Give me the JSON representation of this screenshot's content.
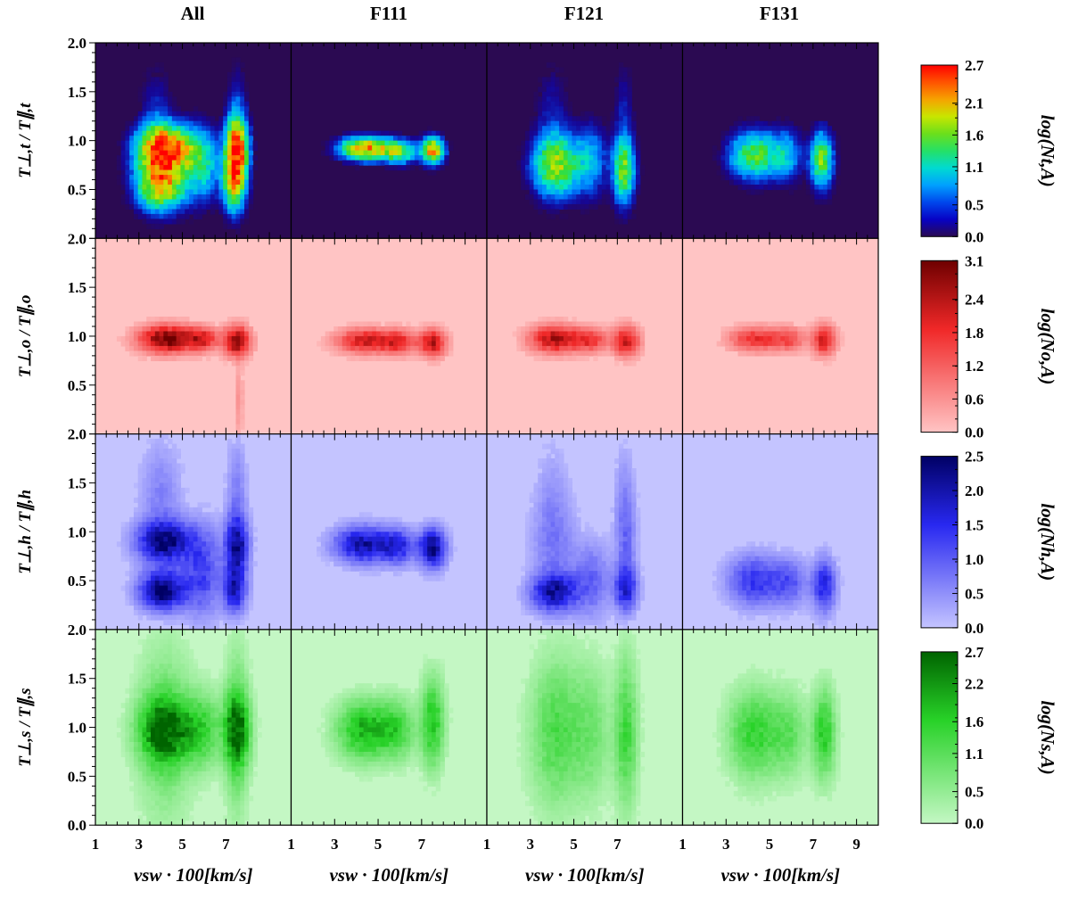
{
  "figure": {
    "column_titles": [
      "All",
      "F111",
      "F121",
      "F131"
    ]
  },
  "chart_data": [
    {
      "type": "heatmap",
      "row": "t",
      "ylabel": "T⊥,t / T∥,t",
      "xlabel": "vsw · 100[km/s]",
      "x_range": [
        1,
        10
      ],
      "x_ticks": [
        "1",
        "3",
        "5",
        "7",
        "9"
      ],
      "y_range": [
        0.0,
        2.0
      ],
      "y_ticks": [
        "0.5",
        "1.0",
        "1.5",
        "2.0"
      ],
      "background": "#2b0a52",
      "colorbar": {
        "label": "log(Nt,A)",
        "ticks": [
          "0.0",
          "0.5",
          "1.1",
          "1.6",
          "2.1",
          "2.7"
        ],
        "range": [
          0.0,
          2.7
        ],
        "palette": "jet"
      },
      "columns": [
        {
          "name": "All",
          "blobs": [
            {
              "x": 4.2,
              "y": 0.92,
              "sx": 0.85,
              "sy": 0.16,
              "w": 1.0
            },
            {
              "x": 4.0,
              "y": 0.55,
              "sx": 0.75,
              "sy": 0.18,
              "w": 0.75
            },
            {
              "x": 7.5,
              "y": 0.92,
              "sx": 0.35,
              "sy": 0.22,
              "w": 0.9
            },
            {
              "x": 7.4,
              "y": 0.55,
              "sx": 0.35,
              "sy": 0.2,
              "w": 0.6
            },
            {
              "x": 5.9,
              "y": 0.75,
              "sx": 0.6,
              "sy": 0.25,
              "w": 0.35
            },
            {
              "x": 3.8,
              "y": 1.3,
              "sx": 0.5,
              "sy": 0.3,
              "w": 0.12
            },
            {
              "x": 7.5,
              "y": 1.35,
              "sx": 0.3,
              "sy": 0.3,
              "w": 0.12
            }
          ]
        },
        {
          "name": "F111",
          "blobs": [
            {
              "x": 4.5,
              "y": 0.92,
              "sx": 0.85,
              "sy": 0.08,
              "w": 0.8
            },
            {
              "x": 7.5,
              "y": 0.9,
              "sx": 0.35,
              "sy": 0.09,
              "w": 0.8
            },
            {
              "x": 6.0,
              "y": 0.88,
              "sx": 0.5,
              "sy": 0.08,
              "w": 0.45
            }
          ]
        },
        {
          "name": "F121",
          "blobs": [
            {
              "x": 4.2,
              "y": 0.75,
              "sx": 0.75,
              "sy": 0.22,
              "w": 0.6
            },
            {
              "x": 7.3,
              "y": 0.7,
              "sx": 0.35,
              "sy": 0.24,
              "w": 0.55
            },
            {
              "x": 5.8,
              "y": 0.8,
              "sx": 0.5,
              "sy": 0.25,
              "w": 0.25
            },
            {
              "x": 4.0,
              "y": 1.35,
              "sx": 0.5,
              "sy": 0.3,
              "w": 0.1
            },
            {
              "x": 7.3,
              "y": 1.35,
              "sx": 0.3,
              "sy": 0.3,
              "w": 0.1
            }
          ]
        },
        {
          "name": "F131",
          "blobs": [
            {
              "x": 4.3,
              "y": 0.85,
              "sx": 0.8,
              "sy": 0.17,
              "w": 0.5
            },
            {
              "x": 7.4,
              "y": 0.8,
              "sx": 0.35,
              "sy": 0.2,
              "w": 0.55
            },
            {
              "x": 5.8,
              "y": 0.85,
              "sx": 0.5,
              "sy": 0.18,
              "w": 0.25
            }
          ]
        }
      ]
    },
    {
      "type": "heatmap",
      "row": "o",
      "ylabel": "T⊥,o / T∥,o",
      "xlabel": "vsw · 100[km/s]",
      "x_range": [
        1,
        10
      ],
      "x_ticks": [
        "1",
        "3",
        "5",
        "7",
        "9"
      ],
      "y_range": [
        0.0,
        2.0
      ],
      "y_ticks": [
        "0.5",
        "1.0",
        "1.5",
        "2.0"
      ],
      "background": "#ffc4c4",
      "colorbar": {
        "label": "log(No,A)",
        "ticks": [
          "0.0",
          "0.6",
          "1.2",
          "1.8",
          "2.4",
          "3.1"
        ],
        "range": [
          0.0,
          3.1
        ],
        "palette": "red"
      },
      "columns": [
        {
          "name": "All",
          "blobs": [
            {
              "x": 4.3,
              "y": 0.97,
              "sx": 0.85,
              "sy": 0.09,
              "w": 1.0
            },
            {
              "x": 7.5,
              "y": 0.95,
              "sx": 0.4,
              "sy": 0.1,
              "w": 0.9
            },
            {
              "x": 5.9,
              "y": 0.97,
              "sx": 0.5,
              "sy": 0.08,
              "w": 0.55
            },
            {
              "x": 7.6,
              "y": 0.35,
              "sx": 0.12,
              "sy": 0.25,
              "w": 0.15
            }
          ]
        },
        {
          "name": "F111",
          "blobs": [
            {
              "x": 4.5,
              "y": 0.95,
              "sx": 0.9,
              "sy": 0.08,
              "w": 0.7
            },
            {
              "x": 7.5,
              "y": 0.93,
              "sx": 0.4,
              "sy": 0.09,
              "w": 0.75
            },
            {
              "x": 6.0,
              "y": 0.94,
              "sx": 0.5,
              "sy": 0.08,
              "w": 0.5
            }
          ]
        },
        {
          "name": "F121",
          "blobs": [
            {
              "x": 4.2,
              "y": 0.97,
              "sx": 0.8,
              "sy": 0.09,
              "w": 0.8
            },
            {
              "x": 7.4,
              "y": 0.95,
              "sx": 0.4,
              "sy": 0.1,
              "w": 0.7
            },
            {
              "x": 5.8,
              "y": 0.96,
              "sx": 0.5,
              "sy": 0.08,
              "w": 0.45
            }
          ]
        },
        {
          "name": "F131",
          "blobs": [
            {
              "x": 4.4,
              "y": 0.97,
              "sx": 0.8,
              "sy": 0.08,
              "w": 0.55
            },
            {
              "x": 7.5,
              "y": 0.96,
              "sx": 0.35,
              "sy": 0.1,
              "w": 0.65
            },
            {
              "x": 5.9,
              "y": 0.97,
              "sx": 0.5,
              "sy": 0.08,
              "w": 0.35
            }
          ]
        }
      ]
    },
    {
      "type": "heatmap",
      "row": "h",
      "ylabel": "T⊥,h / T∥,h",
      "xlabel": "vsw · 100[km/s]",
      "x_range": [
        1,
        10
      ],
      "x_ticks": [
        "1",
        "3",
        "5",
        "7",
        "9"
      ],
      "y_range": [
        0.0,
        2.0
      ],
      "y_ticks": [
        "0.5",
        "1.0",
        "1.5",
        "2.0"
      ],
      "background": "#c4c4ff",
      "colorbar": {
        "label": "log(Nh,A)",
        "ticks": [
          "0.0",
          "0.5",
          "1.0",
          "1.5",
          "2.0",
          "2.5"
        ],
        "range": [
          0.0,
          2.5
        ],
        "palette": "blue"
      },
      "columns": [
        {
          "name": "All",
          "blobs": [
            {
              "x": 4.2,
              "y": 0.9,
              "sx": 0.85,
              "sy": 0.14,
              "w": 0.9
            },
            {
              "x": 4.1,
              "y": 0.4,
              "sx": 0.7,
              "sy": 0.13,
              "w": 1.0
            },
            {
              "x": 7.5,
              "y": 0.85,
              "sx": 0.35,
              "sy": 0.2,
              "w": 0.85
            },
            {
              "x": 7.4,
              "y": 0.4,
              "sx": 0.35,
              "sy": 0.15,
              "w": 0.7
            },
            {
              "x": 5.9,
              "y": 0.6,
              "sx": 0.6,
              "sy": 0.3,
              "w": 0.45
            },
            {
              "x": 4.0,
              "y": 1.35,
              "sx": 0.6,
              "sy": 0.35,
              "w": 0.2
            },
            {
              "x": 7.5,
              "y": 1.4,
              "sx": 0.3,
              "sy": 0.35,
              "w": 0.2
            }
          ]
        },
        {
          "name": "F111",
          "blobs": [
            {
              "x": 4.3,
              "y": 0.87,
              "sx": 0.85,
              "sy": 0.12,
              "w": 0.8
            },
            {
              "x": 7.5,
              "y": 0.83,
              "sx": 0.4,
              "sy": 0.13,
              "w": 0.9
            },
            {
              "x": 5.9,
              "y": 0.85,
              "sx": 0.55,
              "sy": 0.12,
              "w": 0.55
            }
          ]
        },
        {
          "name": "F121",
          "blobs": [
            {
              "x": 4.1,
              "y": 0.38,
              "sx": 0.7,
              "sy": 0.13,
              "w": 0.8
            },
            {
              "x": 7.4,
              "y": 0.42,
              "sx": 0.35,
              "sy": 0.15,
              "w": 0.6
            },
            {
              "x": 4.1,
              "y": 0.85,
              "sx": 0.7,
              "sy": 0.3,
              "w": 0.2
            },
            {
              "x": 7.4,
              "y": 0.9,
              "sx": 0.3,
              "sy": 0.35,
              "w": 0.25
            },
            {
              "x": 5.8,
              "y": 0.5,
              "sx": 0.6,
              "sy": 0.25,
              "w": 0.3
            },
            {
              "x": 4.0,
              "y": 1.35,
              "sx": 0.5,
              "sy": 0.35,
              "w": 0.12
            },
            {
              "x": 7.3,
              "y": 1.35,
              "sx": 0.3,
              "sy": 0.35,
              "w": 0.12
            }
          ]
        },
        {
          "name": "F131",
          "blobs": [
            {
              "x": 4.3,
              "y": 0.5,
              "sx": 0.8,
              "sy": 0.17,
              "w": 0.5
            },
            {
              "x": 7.5,
              "y": 0.45,
              "sx": 0.35,
              "sy": 0.18,
              "w": 0.6
            },
            {
              "x": 5.9,
              "y": 0.48,
              "sx": 0.55,
              "sy": 0.16,
              "w": 0.35
            }
          ]
        }
      ]
    },
    {
      "type": "heatmap",
      "row": "s",
      "ylabel": "T⊥,s / T∥,s",
      "xlabel": "vsw · 100[km/s]",
      "x_range": [
        1,
        10
      ],
      "x_ticks": [
        "1",
        "3",
        "5",
        "7",
        "9"
      ],
      "y_range": [
        0.0,
        2.0
      ],
      "y_ticks": [
        "0.0",
        "0.5",
        "1.0",
        "1.5",
        "2.0"
      ],
      "background": "#c4f7c4",
      "colorbar": {
        "label": "log(Ns,A)",
        "ticks": [
          "0.0",
          "0.5",
          "1.1",
          "1.6",
          "2.2",
          "2.7"
        ],
        "range": [
          0.0,
          2.7
        ],
        "palette": "green"
      },
      "columns": [
        {
          "name": "All",
          "blobs": [
            {
              "x": 4.2,
              "y": 0.97,
              "sx": 0.8,
              "sy": 0.22,
              "w": 0.9
            },
            {
              "x": 7.5,
              "y": 0.97,
              "sx": 0.4,
              "sy": 0.25,
              "w": 0.85
            },
            {
              "x": 5.9,
              "y": 0.97,
              "sx": 0.6,
              "sy": 0.25,
              "w": 0.45
            },
            {
              "x": 4.2,
              "y": 0.95,
              "sx": 0.8,
              "sy": 0.6,
              "w": 0.3
            },
            {
              "x": 7.5,
              "y": 0.95,
              "sx": 0.35,
              "sy": 0.6,
              "w": 0.3
            }
          ]
        },
        {
          "name": "F111",
          "blobs": [
            {
              "x": 4.4,
              "y": 0.97,
              "sx": 0.85,
              "sy": 0.2,
              "w": 0.7
            },
            {
              "x": 7.5,
              "y": 1.05,
              "sx": 0.35,
              "sy": 0.3,
              "w": 0.6
            },
            {
              "x": 5.9,
              "y": 0.98,
              "sx": 0.55,
              "sy": 0.2,
              "w": 0.4
            }
          ]
        },
        {
          "name": "F121",
          "blobs": [
            {
              "x": 4.2,
              "y": 0.95,
              "sx": 0.8,
              "sy": 0.5,
              "w": 0.4
            },
            {
              "x": 7.4,
              "y": 0.95,
              "sx": 0.35,
              "sy": 0.5,
              "w": 0.45
            },
            {
              "x": 5.8,
              "y": 0.95,
              "sx": 0.6,
              "sy": 0.45,
              "w": 0.25
            }
          ]
        },
        {
          "name": "F131",
          "blobs": [
            {
              "x": 4.3,
              "y": 0.93,
              "sx": 0.8,
              "sy": 0.3,
              "w": 0.5
            },
            {
              "x": 7.5,
              "y": 0.93,
              "sx": 0.35,
              "sy": 0.3,
              "w": 0.55
            },
            {
              "x": 5.9,
              "y": 0.93,
              "sx": 0.55,
              "sy": 0.28,
              "w": 0.3
            }
          ]
        }
      ]
    }
  ]
}
